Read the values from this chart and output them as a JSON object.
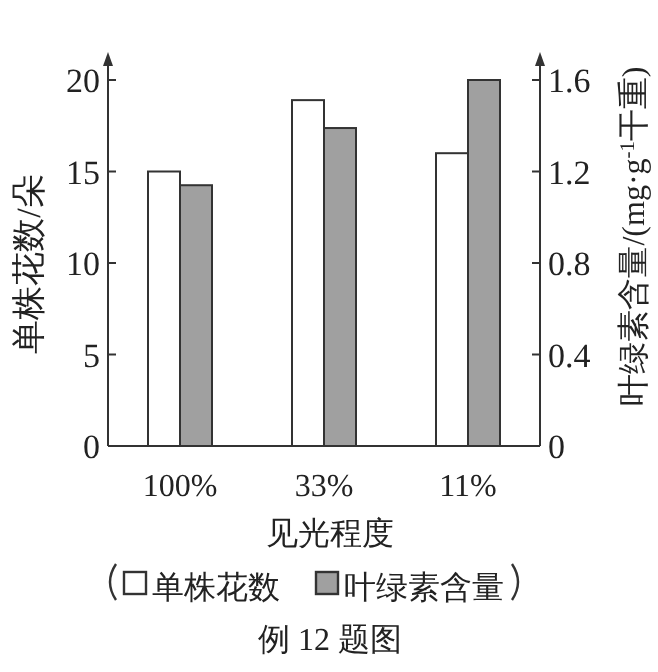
{
  "chart_data": {
    "type": "bar",
    "xlabel": "见光程度",
    "ylabel": "单株花数/朵",
    "y2label": "叶绿素含量/(mg·g$^{-1}$干重)",
    "categories": [
      "100%",
      "33%",
      "11%"
    ],
    "series": [
      {
        "name": "单株花数",
        "color": "#ffffff",
        "values": [
          15,
          18.9,
          16.0
        ]
      },
      {
        "name": "叶绿素含量",
        "color": "#a0a0a0",
        "values": [
          1.14,
          1.39,
          1.6
        ],
        "axis": "y2"
      }
    ],
    "ylim": [
      0,
      20
    ],
    "yticks": [
      0,
      5,
      10,
      15,
      20
    ],
    "y2lim": [
      0,
      1.6
    ],
    "y2ticks": [
      0,
      0.4,
      0.8,
      1.2,
      1.6
    ],
    "legend": "bottom",
    "annotations": [
      "例 12 题图"
    ]
  }
}
